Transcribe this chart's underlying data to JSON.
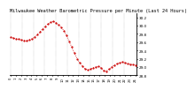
{
  "title": "Milwaukee Weather Barometric Pressure per Minute (Last 24 Hours)",
  "line_color": "#cc0000",
  "background_color": "#ffffff",
  "plot_bg_color": "#ffffff",
  "grid_color": "#888888",
  "y_values": [
    29.72,
    29.7,
    29.68,
    29.67,
    29.65,
    29.64,
    29.63,
    29.65,
    29.68,
    29.72,
    29.78,
    29.84,
    29.92,
    29.98,
    30.04,
    30.08,
    30.1,
    30.07,
    30.02,
    29.96,
    29.88,
    29.76,
    29.62,
    29.48,
    29.34,
    29.2,
    29.1,
    29.02,
    28.96,
    28.93,
    28.95,
    28.98,
    29.0,
    29.02,
    28.98,
    28.92,
    28.9,
    28.95,
    29.0,
    29.05,
    29.08,
    29.1,
    29.12,
    29.1,
    29.08,
    29.07,
    29.06,
    29.05
  ],
  "ylim": [
    28.8,
    30.3
  ],
  "yticks": [
    28.8,
    29.0,
    29.2,
    29.4,
    29.6,
    29.8,
    30.0,
    30.2
  ],
  "ytick_labels": [
    "28.8",
    "29.0",
    "29.2",
    "29.4",
    "29.6",
    "29.8",
    "30.0",
    "30.2"
  ],
  "num_vgrid": 11,
  "title_fontsize": 3.8,
  "tick_fontsize": 3.0,
  "line_width": 0.6,
  "marker": ".",
  "marker_size": 1.2
}
